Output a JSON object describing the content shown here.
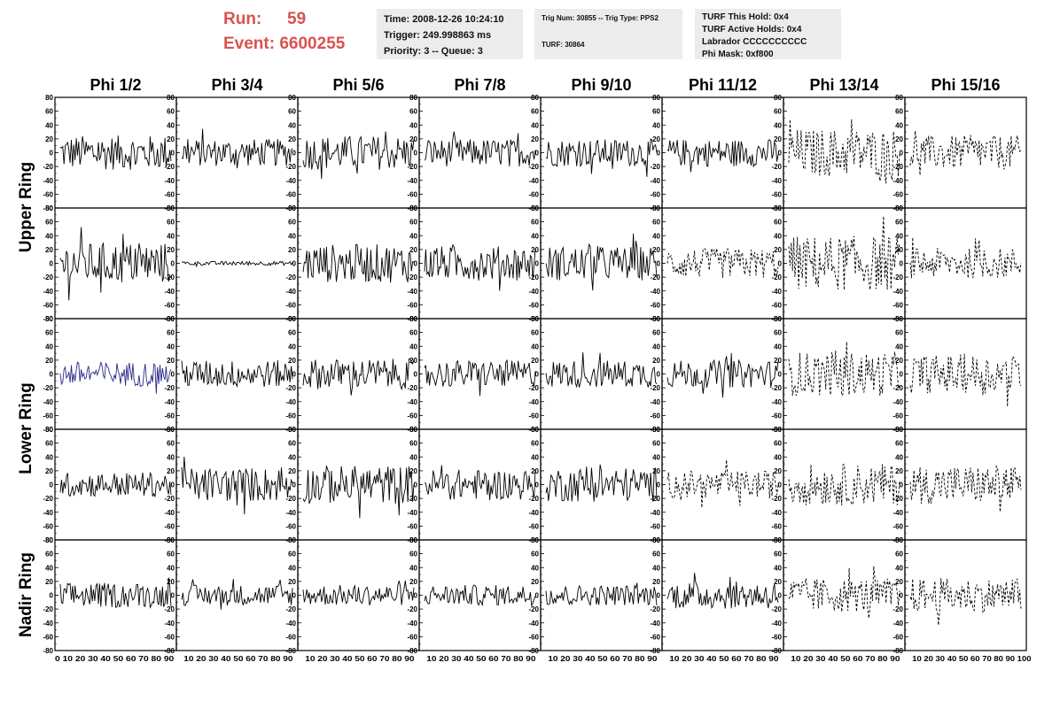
{
  "header": {
    "run_label": "Run:",
    "run_value": "59",
    "event_label": "Event:",
    "event_value": "6600255",
    "box1": [
      "Time: 2008-12-26 10:24:10",
      "Trigger: 249.998863 ms",
      "Priority: 3 -- Queue: 3"
    ],
    "box2": [
      "Trig Num: 30855 -- Trig Type: PPS2",
      "",
      "TURF: 30864"
    ],
    "box3": [
      "TURF This Hold: 0x4",
      "TURF Active Holds: 0x4",
      "Labrador CCCCCCCCCC",
      "Phi Mask: 0xf800"
    ]
  },
  "colors": {
    "run_text": "#d9534f",
    "trace_default": "#000000",
    "trace_highlight": "#2a2a8a",
    "info_bg": "#ececec"
  },
  "chart_data": {
    "type": "line",
    "columns": [
      "Phi 1/2",
      "Phi 3/4",
      "Phi 5/6",
      "Phi 7/8",
      "Phi 9/10",
      "Phi 11/12",
      "Phi 13/14",
      "Phi 15/16"
    ],
    "row_groups": [
      "Upper Ring",
      "Lower Ring",
      "Nadir Ring"
    ],
    "rows": 5,
    "ylim": [
      -80,
      80
    ],
    "yticks": [
      -80,
      -60,
      -40,
      -20,
      0,
      20,
      40,
      60,
      80
    ],
    "xlim": [
      0,
      100
    ],
    "xticks": [
      0,
      10,
      20,
      30,
      40,
      50,
      60,
      70,
      80,
      90,
      100
    ],
    "x_tick_labels_first": "0 10 20 30 40 50 60 70 80 90",
    "x_tick_labels_inner": "10 20 30 40 50 60 70 80 90",
    "x_tick_labels_last": "10 20 30 40 50 60 70 80 90 100",
    "trace_samples": 90,
    "panels": [
      [
        {
          "amp": 25,
          "dashed": false,
          "highlight": false
        },
        {
          "amp": 20,
          "dashed": false,
          "highlight": false
        },
        {
          "amp": 25,
          "dashed": false,
          "highlight": false
        },
        {
          "amp": 20,
          "dashed": false,
          "highlight": false
        },
        {
          "amp": 20,
          "dashed": false,
          "highlight": false
        },
        {
          "amp": 20,
          "dashed": false,
          "highlight": false
        },
        {
          "amp": 35,
          "dashed": true,
          "highlight": false
        },
        {
          "amp": 25,
          "dashed": true,
          "highlight": false
        }
      ],
      [
        {
          "amp": 30,
          "dashed": false,
          "highlight": false
        },
        {
          "amp": 3,
          "dashed": false,
          "highlight": false
        },
        {
          "amp": 28,
          "dashed": false,
          "highlight": false
        },
        {
          "amp": 25,
          "dashed": false,
          "highlight": false
        },
        {
          "amp": 25,
          "dashed": false,
          "highlight": false
        },
        {
          "amp": 22,
          "dashed": true,
          "highlight": false
        },
        {
          "amp": 40,
          "dashed": true,
          "highlight": false
        },
        {
          "amp": 22,
          "dashed": true,
          "highlight": false
        }
      ],
      [
        {
          "amp": 18,
          "dashed": false,
          "highlight": true
        },
        {
          "amp": 20,
          "dashed": false,
          "highlight": false
        },
        {
          "amp": 22,
          "dashed": false,
          "highlight": false
        },
        {
          "amp": 20,
          "dashed": false,
          "highlight": false
        },
        {
          "amp": 20,
          "dashed": false,
          "highlight": false
        },
        {
          "amp": 20,
          "dashed": false,
          "highlight": false
        },
        {
          "amp": 32,
          "dashed": true,
          "highlight": false
        },
        {
          "amp": 28,
          "dashed": true,
          "highlight": false
        }
      ],
      [
        {
          "amp": 18,
          "dashed": false,
          "highlight": false
        },
        {
          "amp": 25,
          "dashed": false,
          "highlight": false
        },
        {
          "amp": 28,
          "dashed": false,
          "highlight": false
        },
        {
          "amp": 22,
          "dashed": false,
          "highlight": false
        },
        {
          "amp": 25,
          "dashed": false,
          "highlight": false
        },
        {
          "amp": 20,
          "dashed": true,
          "highlight": false
        },
        {
          "amp": 30,
          "dashed": true,
          "highlight": false
        },
        {
          "amp": 28,
          "dashed": true,
          "highlight": false
        }
      ],
      [
        {
          "amp": 18,
          "dashed": false,
          "highlight": false
        },
        {
          "amp": 15,
          "dashed": false,
          "highlight": false
        },
        {
          "amp": 15,
          "dashed": false,
          "highlight": false
        },
        {
          "amp": 15,
          "dashed": false,
          "highlight": false
        },
        {
          "amp": 15,
          "dashed": false,
          "highlight": false
        },
        {
          "amp": 20,
          "dashed": false,
          "highlight": false
        },
        {
          "amp": 25,
          "dashed": true,
          "highlight": false
        },
        {
          "amp": 25,
          "dashed": true,
          "highlight": false
        }
      ]
    ]
  }
}
